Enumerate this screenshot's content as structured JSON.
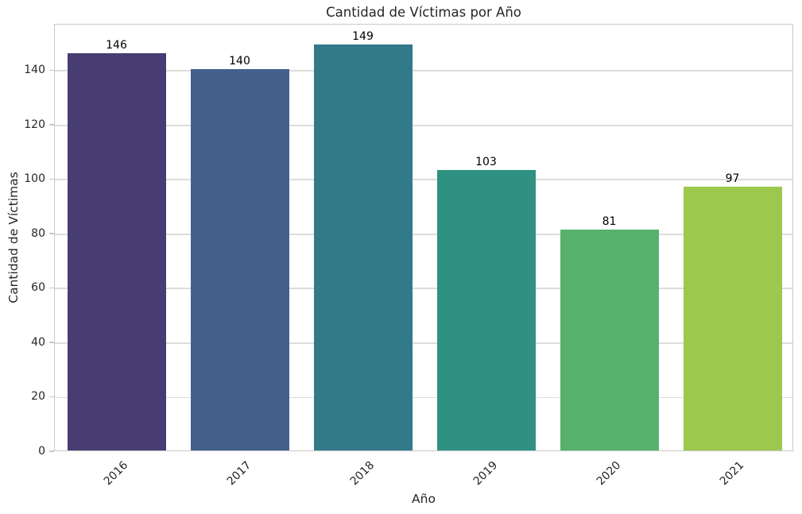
{
  "figure": {
    "background": "#ffffff",
    "plot_border_color": "#c9c9c9",
    "grid_color": "#dcdcdc",
    "text_color": "#262626",
    "value_label_color": "#000000"
  },
  "chart_data": {
    "type": "bar",
    "title": "Cantidad de Víctimas por Año",
    "xlabel": "Año",
    "ylabel": "Cantidad de Víctimas",
    "categories": [
      "2016",
      "2017",
      "2018",
      "2019",
      "2020",
      "2021"
    ],
    "values": [
      146,
      140,
      149,
      103,
      81,
      97
    ],
    "bar_colors": [
      "#483d73",
      "#44608c",
      "#32798a",
      "#2f9181",
      "#56b16c",
      "#9cc84e"
    ],
    "palette": "viridis",
    "ylim": [
      0,
      157
    ],
    "yticks": [
      0,
      20,
      40,
      60,
      80,
      100,
      120,
      140
    ],
    "grid": true,
    "grid_axis": "y",
    "legend": null,
    "x_tick_rotation": 45,
    "bar_value_labels_shown": true
  }
}
